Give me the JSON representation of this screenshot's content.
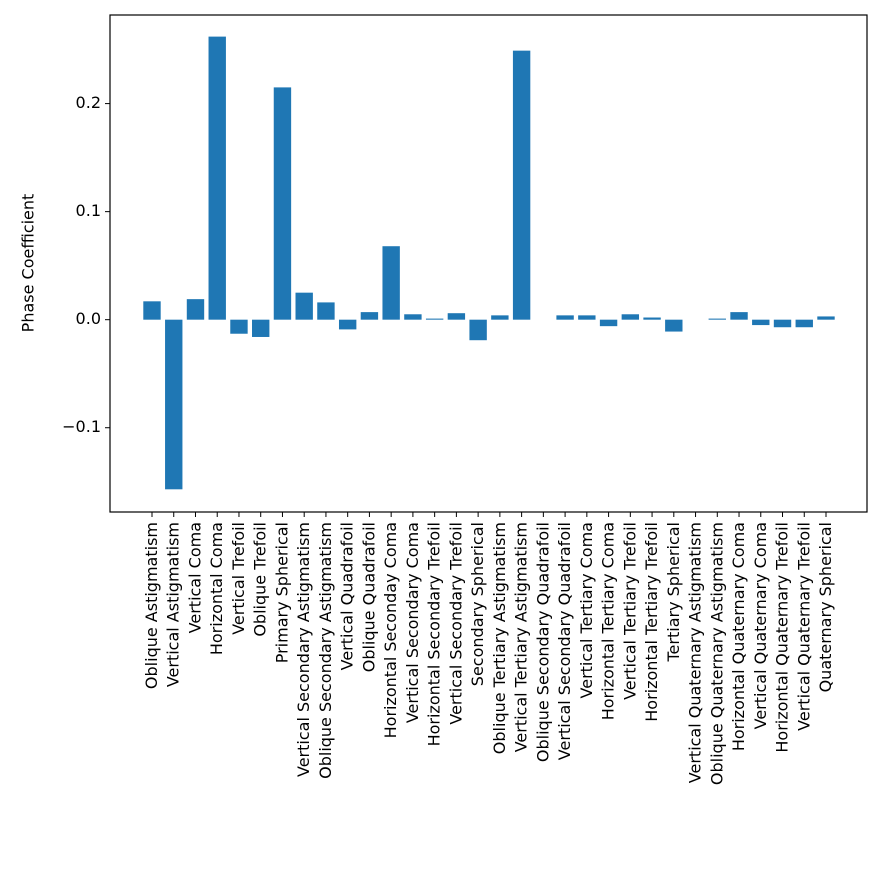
{
  "chart_data": {
    "type": "bar",
    "title": "",
    "xlabel": "",
    "ylabel": "Phase Coefficient",
    "ylim": [
      -0.178,
      0.282
    ],
    "yticks": [
      -0.1,
      0.0,
      0.1,
      0.2
    ],
    "ytick_labels": [
      "−0.1",
      "0.0",
      "0.1",
      "0.2"
    ],
    "grid": false,
    "bar_color": "#1f77b4",
    "categories": [
      "Oblique Astigmatism",
      "Vertical Astigmatism",
      "Vertical Coma",
      "Horizontal Coma",
      "Vertical Trefoil",
      "Oblique Trefoil",
      "Primary Spherical",
      "Vertical Secondary Astigmatism",
      "Oblique Secondary Astigmatism",
      "Vertical Quadrafoil",
      "Oblique Quadrafoil",
      "Horizontal Seconday Coma",
      "Vertical Secondary Coma",
      "Horizontal Secondary Trefoil",
      "Vertical Secondary Trefoil",
      "Secondary Spherical",
      "Oblique Tertiary Astigmatism",
      "Vertical Tertiary Astigmatism",
      "Oblique Secondary Quadrafoil",
      "Vertical Secondary Quadrafoil",
      "Vertical Tertiary Coma",
      "Horizontal Tertiary Coma",
      "Vertical Tertiary Trefoil",
      "Horizontal Tertiary Trefoil",
      "Tertiary Spherical",
      "Vertical Quaternary Astigmatism",
      "Oblique Quaternary Astigmatism",
      "Horizontal Quaternary Coma",
      "Vertical Quaternary Coma",
      "Horizontal Quaternary Trefoil",
      "Vertical Quaternary Trefoil",
      "Quaternary Spherical"
    ],
    "values": [
      0.017,
      -0.157,
      0.019,
      0.262,
      -0.013,
      -0.016,
      0.215,
      0.025,
      0.016,
      -0.009,
      0.007,
      0.068,
      0.005,
      0.001,
      0.006,
      -0.019,
      0.004,
      0.249,
      0.0,
      0.004,
      0.004,
      -0.006,
      0.005,
      0.002,
      -0.011,
      0.0,
      0.001,
      0.007,
      -0.005,
      -0.007,
      -0.007,
      0.003
    ]
  }
}
